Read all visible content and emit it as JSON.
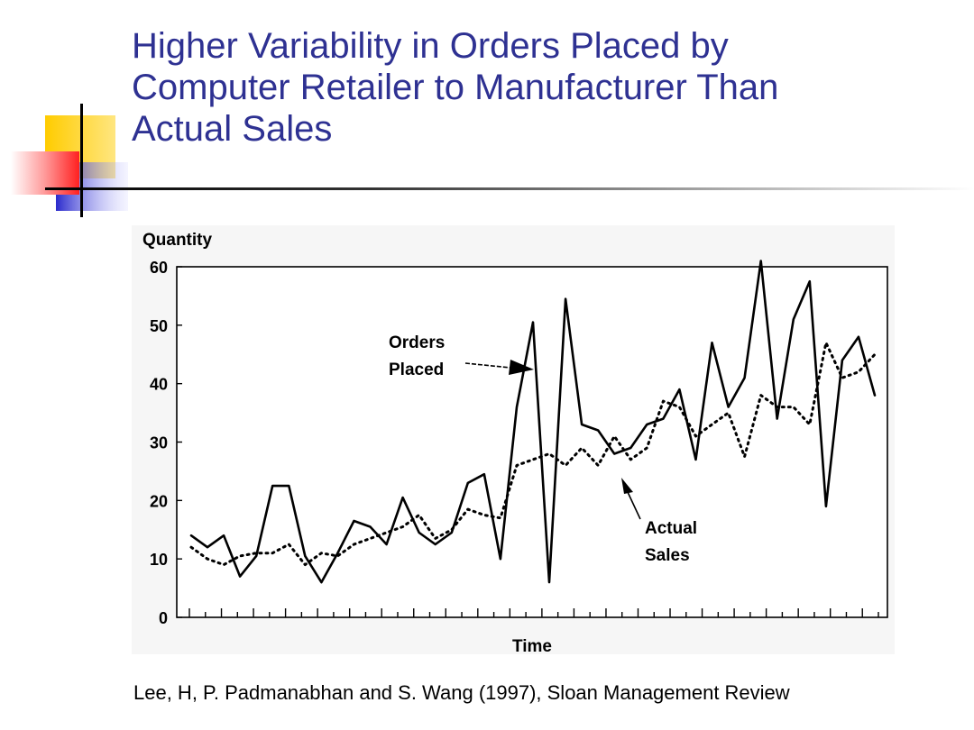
{
  "slide": {
    "title_lines": [
      "Higher Variability in Orders Placed by",
      "Computer Retailer to Manufacturer Than",
      "Actual Sales"
    ],
    "citation": "Lee, H, P. Padmanabhan and S. Wang (1997), Sloan Management Review",
    "colors": {
      "title": "#2e3192",
      "accent_yellow": "#ffcc00",
      "accent_red": "#ff3333",
      "accent_blue": "#3333cc"
    }
  },
  "chart_data": {
    "type": "line",
    "title": "",
    "xlabel": "Time",
    "ylabel": "Quantity",
    "ylim": [
      0,
      60
    ],
    "yticks": [
      0,
      10,
      20,
      30,
      40,
      50,
      60
    ],
    "x_tick_count": 44,
    "grid": false,
    "series": [
      {
        "name": "Orders Placed",
        "style": "solid",
        "values": [
          14,
          12,
          14,
          7,
          10.5,
          22.5,
          22.5,
          10.5,
          6,
          11,
          16.5,
          15.5,
          12.5,
          20.5,
          14.5,
          12.5,
          14.5,
          23,
          24.5,
          10,
          36,
          50.5,
          6,
          54.5,
          33,
          32,
          28,
          29,
          33,
          34,
          39,
          27,
          47,
          36,
          41,
          61,
          34,
          51,
          57.5,
          19,
          44,
          48,
          38
        ]
      },
      {
        "name": "Actual Sales",
        "style": "dotted",
        "values": [
          12,
          10,
          9,
          10.5,
          11,
          11,
          12.5,
          9,
          11,
          10.5,
          12.5,
          13.5,
          14.5,
          15.5,
          17.5,
          13.5,
          15,
          18.5,
          17.5,
          17,
          26,
          27,
          28,
          26,
          29,
          26,
          31,
          27,
          29,
          37,
          36,
          31,
          33,
          35,
          27.5,
          38,
          36,
          36,
          33,
          47,
          41,
          42,
          45
        ]
      }
    ],
    "annotations": [
      {
        "text": [
          "Orders",
          "Placed"
        ],
        "target": "Orders Placed"
      },
      {
        "text": [
          "Actual",
          "Sales"
        ],
        "target": "Actual Sales"
      }
    ]
  }
}
